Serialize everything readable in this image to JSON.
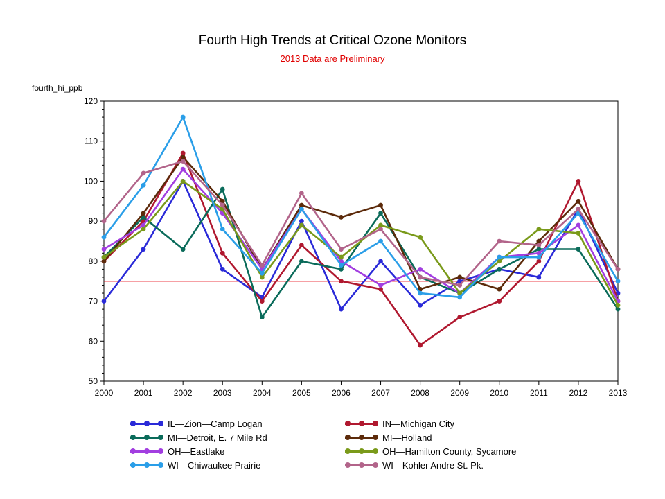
{
  "chart_data": {
    "type": "line",
    "title": "Fourth High Trends at Critical Ozone Monitors",
    "subtitle": "2013 Data are Preliminary",
    "ylabel": "fourth_hi_ppb",
    "xlabel": "",
    "x": [
      "2000",
      "2001",
      "2002",
      "2003",
      "2004",
      "2005",
      "2006",
      "2007",
      "2008",
      "2009",
      "2010",
      "2011",
      "2012",
      "2013"
    ],
    "ylim": [
      50,
      120
    ],
    "yticks": [
      "50",
      "60",
      "70",
      "80",
      "90",
      "100",
      "110",
      "120"
    ],
    "reference_line": {
      "y": 75,
      "color": "#e8000b"
    },
    "legend_position": "bottom",
    "grid": false,
    "series": [
      {
        "name": "IL—Zion—Camp Logan",
        "color": "#2a2ad8",
        "values": [
          70,
          83,
          100,
          78,
          71,
          90,
          68,
          80,
          69,
          75,
          78,
          76,
          93,
          72
        ]
      },
      {
        "name": "IN—Michigan City",
        "color": "#b0182f",
        "values": [
          80,
          90,
          107,
          82,
          70,
          84,
          75,
          73,
          59,
          66,
          70,
          80,
          100,
          70
        ]
      },
      {
        "name": "MI—Detroit, E. 7 Mile Rd",
        "color": "#0a6b5a",
        "values": [
          81,
          91,
          83,
          98,
          66,
          80,
          78,
          92,
          76,
          72,
          78,
          83,
          83,
          68
        ]
      },
      {
        "name": "MI—Holland",
        "color": "#5c2a0a",
        "values": [
          80,
          92,
          106,
          95,
          78,
          94,
          91,
          94,
          73,
          76,
          73,
          85,
          95,
          78
        ]
      },
      {
        "name": "OH—Eastlake",
        "color": "#a23ee0",
        "values": [
          83,
          89,
          103,
          92,
          78,
          93,
          80,
          74,
          78,
          72,
          81,
          82,
          89,
          70
        ]
      },
      {
        "name": "OH—Hamilton County, Sycamore",
        "color": "#7a9a1a",
        "values": [
          81,
          88,
          100,
          93,
          76,
          89,
          81,
          89,
          86,
          72,
          80,
          88,
          87,
          69
        ]
      },
      {
        "name": "WI—Chiwaukee Prairie",
        "color": "#2a9ee8",
        "values": [
          86,
          99,
          116,
          88,
          77,
          93,
          79,
          85,
          72,
          71,
          81,
          81,
          92,
          75
        ]
      },
      {
        "name": "WI—Kohler Andre St. Pk.",
        "color": "#b2648a",
        "values": [
          90,
          102,
          105,
          94,
          79,
          97,
          83,
          88,
          76,
          74,
          85,
          84,
          93,
          78
        ]
      }
    ]
  }
}
